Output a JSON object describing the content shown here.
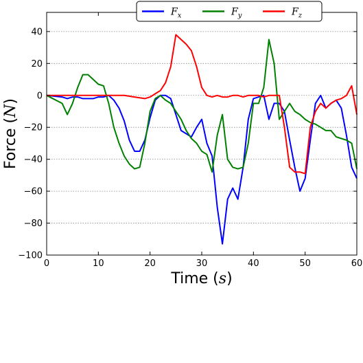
{
  "chart_data": {
    "type": "line",
    "title": "",
    "xlabel": "Time",
    "xlabel_unit": "s",
    "ylabel": "Force",
    "ylabel_unit": "N",
    "xlim": [
      0,
      60
    ],
    "ylim": [
      -100,
      52
    ],
    "xticks": [
      "0",
      "10",
      "20",
      "30",
      "40",
      "50",
      "60"
    ],
    "yticks": [
      "−100",
      "−80",
      "−60",
      "−40",
      "−20",
      "0",
      "20",
      "40"
    ],
    "grid": "horizontal dotted",
    "legend_position": "top-center",
    "series": [
      {
        "name": "F",
        "subscript": "x",
        "color": "#0000ff",
        "x": [
          0,
          3,
          4,
          5,
          6,
          7,
          8,
          9,
          10,
          11,
          12,
          13,
          14,
          15,
          16,
          17,
          18,
          19,
          20,
          21,
          22,
          23,
          24,
          25,
          26,
          27,
          28,
          29,
          30,
          31,
          32,
          33,
          34,
          35,
          36,
          37,
          38,
          39,
          40,
          41,
          42,
          43,
          44,
          45,
          46,
          47,
          48,
          49,
          50,
          51,
          52,
          53,
          54,
          55,
          56,
          57,
          58,
          59,
          60
        ],
        "y": [
          0,
          -1,
          -2,
          -1,
          -1,
          -2,
          -2,
          -2,
          -1,
          -1,
          0,
          -3,
          -8,
          -16,
          -28,
          -35,
          -35,
          -28,
          -14,
          -3,
          0,
          0,
          -2,
          -12,
          -22,
          -24,
          -26,
          -20,
          -15,
          -30,
          -38,
          -70,
          -93,
          -65,
          -58,
          -65,
          -45,
          -15,
          -2,
          -1,
          0,
          -15,
          -5,
          -5,
          -10,
          -28,
          -45,
          -60,
          -52,
          -28,
          -5,
          0,
          -8,
          -5,
          -3,
          -8,
          -25,
          -45,
          -52
        ]
      },
      {
        "name": "F",
        "subscript": "y",
        "color": "#008000",
        "x": [
          0,
          3,
          4,
          5,
          6,
          7,
          8,
          9,
          10,
          11,
          12,
          13,
          14,
          15,
          16,
          17,
          18,
          19,
          20,
          21,
          22,
          23,
          24,
          25,
          26,
          27,
          28,
          29,
          30,
          31,
          32,
          33,
          34,
          35,
          36,
          37,
          38,
          39,
          40,
          41,
          42,
          43,
          44,
          45,
          46,
          47,
          48,
          49,
          50,
          51,
          52,
          53,
          54,
          55,
          56,
          57,
          58,
          59,
          60
        ],
        "y": [
          0,
          -5,
          -12,
          -5,
          5,
          13,
          13,
          10,
          7,
          6,
          -5,
          -20,
          -30,
          -38,
          -43,
          -46,
          -45,
          -30,
          -10,
          -2,
          0,
          -3,
          -5,
          -10,
          -15,
          -22,
          -27,
          -30,
          -35,
          -37,
          -48,
          -25,
          -12,
          -40,
          -45,
          -46,
          -45,
          -30,
          -5,
          -5,
          5,
          35,
          20,
          -15,
          -10,
          -5,
          -10,
          -12,
          -15,
          -17,
          -18,
          -20,
          -22,
          -22,
          -26,
          -27,
          -28,
          -30,
          -46
        ]
      },
      {
        "name": "F",
        "subscript": "z",
        "color": "#ff0000",
        "x": [
          0,
          5,
          10,
          15,
          17,
          19,
          20,
          21,
          22,
          23,
          24,
          25,
          26,
          27,
          28,
          29,
          30,
          31,
          32,
          33,
          34,
          35,
          36,
          37,
          38,
          39,
          40,
          41,
          42,
          43,
          44,
          45,
          46,
          47,
          48,
          49,
          50,
          51,
          52,
          53,
          54,
          55,
          56,
          57,
          58,
          59,
          60
        ],
        "y": [
          0,
          0,
          0,
          0,
          -1,
          -2,
          -1,
          1,
          3,
          8,
          18,
          38,
          35,
          32,
          28,
          18,
          5,
          0,
          -1,
          0,
          -1,
          -1,
          0,
          0,
          -1,
          0,
          0,
          0,
          -1,
          0,
          0,
          0,
          -20,
          -45,
          -48,
          -48,
          -49,
          -20,
          -10,
          -5,
          -8,
          -5,
          -3,
          -2,
          0,
          6,
          -12
        ]
      }
    ]
  }
}
